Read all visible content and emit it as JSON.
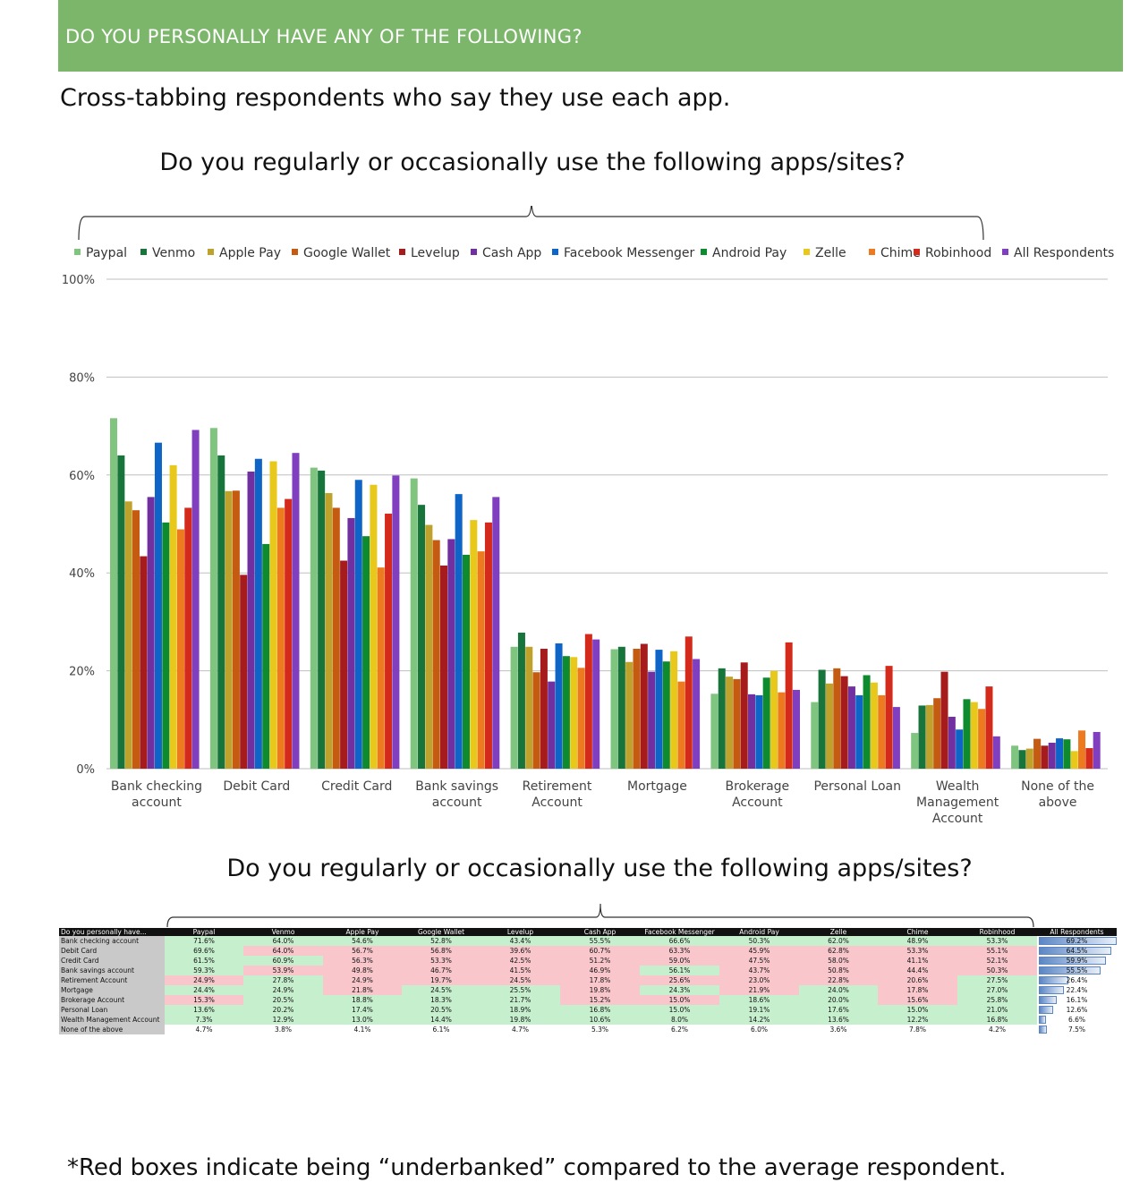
{
  "banner": {
    "text": "DO YOU PERSONALLY HAVE ANY OF THE FOLLOWING?"
  },
  "subtitle": "Cross-tabbing respondents who say they use each app.",
  "question": "Do you regularly or occasionally use the following apps/sites?",
  "footnote": "*Red boxes indicate being “underbanked” compared to the average respondent.",
  "colors": {
    "banner": "#7cb66b",
    "Paypal": "#7fc47f",
    "Venmo": "#17743a",
    "Apple Pay": "#bfa22b",
    "Google Wallet": "#c55a11",
    "Levelup": "#a61c1c",
    "Cash App": "#7030a0",
    "Facebook Messenger": "#0f64c8",
    "Android Pay": "#0f8b2f",
    "Zelle": "#e8c91b",
    "Chime": "#ee7a1f",
    "Robinhood": "#d42a1b",
    "All Respondents": "#7f3fbf",
    "red_cell": "#f9c6cc",
    "green_cell": "#c6efce"
  },
  "chart_data": {
    "type": "bar",
    "title": "Do you regularly or occasionally use the following apps/sites?",
    "categories": [
      "Bank checking account",
      "Debit Card",
      "Credit Card",
      "Bank savings account",
      "Retirement Account",
      "Mortgage",
      "Brokerage Account",
      "Personal Loan",
      "Wealth Management Account",
      "None of the above"
    ],
    "ylim": [
      0,
      100
    ],
    "yticks": [
      "0%",
      "20%",
      "40%",
      "60%",
      "80%",
      "100%"
    ],
    "legend_position": "top",
    "grid": true,
    "series": [
      {
        "name": "Paypal",
        "values": [
          71.6,
          69.6,
          61.5,
          59.3,
          24.9,
          24.4,
          15.3,
          13.6,
          7.3,
          4.7
        ]
      },
      {
        "name": "Venmo",
        "values": [
          64.0,
          64.0,
          60.9,
          53.9,
          27.8,
          24.9,
          20.5,
          20.2,
          12.9,
          3.8
        ]
      },
      {
        "name": "Apple Pay",
        "values": [
          54.6,
          56.7,
          56.3,
          49.8,
          24.9,
          21.8,
          18.8,
          17.4,
          13.0,
          4.1
        ]
      },
      {
        "name": "Google Wallet",
        "values": [
          52.8,
          56.8,
          53.3,
          46.7,
          19.7,
          24.5,
          18.3,
          20.5,
          14.4,
          6.1
        ]
      },
      {
        "name": "Levelup",
        "values": [
          43.4,
          39.6,
          42.5,
          41.5,
          24.5,
          25.5,
          21.7,
          18.9,
          19.8,
          4.7
        ]
      },
      {
        "name": "Cash App",
        "values": [
          55.5,
          60.7,
          51.2,
          46.9,
          17.8,
          19.8,
          15.2,
          16.8,
          10.6,
          5.3
        ]
      },
      {
        "name": "Facebook Messenger",
        "values": [
          66.6,
          63.3,
          59.0,
          56.1,
          25.6,
          24.3,
          15.0,
          15.0,
          8.0,
          6.2
        ]
      },
      {
        "name": "Android Pay",
        "values": [
          50.3,
          45.9,
          47.5,
          43.7,
          23.0,
          21.9,
          18.6,
          19.1,
          14.2,
          6.0
        ]
      },
      {
        "name": "Zelle",
        "values": [
          62.0,
          62.8,
          58.0,
          50.8,
          22.8,
          24.0,
          20.0,
          17.6,
          13.6,
          3.6
        ]
      },
      {
        "name": "Chime",
        "values": [
          48.9,
          53.3,
          41.1,
          44.4,
          20.6,
          17.8,
          15.6,
          15.0,
          12.2,
          7.8
        ]
      },
      {
        "name": "Robinhood",
        "values": [
          53.3,
          55.1,
          52.1,
          50.3,
          27.5,
          27.0,
          25.8,
          21.0,
          16.8,
          4.2
        ]
      },
      {
        "name": "All Respondents",
        "values": [
          69.2,
          64.5,
          59.9,
          55.5,
          26.4,
          22.4,
          16.1,
          12.6,
          6.6,
          7.5
        ]
      }
    ]
  },
  "table": {
    "corner": "Do you personally have...",
    "headers": [
      "Paypal",
      "Venmo",
      "Apple Pay",
      "Google Wallet",
      "Levelup",
      "Cash App",
      "Facebook Messenger",
      "Android Pay",
      "Zelle",
      "Chime",
      "Robinhood",
      "All Respondents"
    ],
    "rows": [
      {
        "label": "Bank checking account",
        "cells": [
          [
            "71.6%",
            "green"
          ],
          [
            "64.0%",
            "green"
          ],
          [
            "54.6%",
            "green"
          ],
          [
            "52.8%",
            "green"
          ],
          [
            "43.4%",
            "green"
          ],
          [
            "55.5%",
            "green"
          ],
          [
            "66.6%",
            "green"
          ],
          [
            "50.3%",
            "green"
          ],
          [
            "62.0%",
            "green"
          ],
          [
            "48.9%",
            "green"
          ],
          [
            "53.3%",
            "green"
          ]
        ],
        "all": "69.2%",
        "all_value": 69.2
      },
      {
        "label": "Debit Card",
        "cells": [
          [
            "69.6%",
            "green"
          ],
          [
            "64.0%",
            "red"
          ],
          [
            "56.7%",
            "red"
          ],
          [
            "56.8%",
            "red"
          ],
          [
            "39.6%",
            "red"
          ],
          [
            "60.7%",
            "red"
          ],
          [
            "63.3%",
            "red"
          ],
          [
            "45.9%",
            "red"
          ],
          [
            "62.8%",
            "red"
          ],
          [
            "53.3%",
            "red"
          ],
          [
            "55.1%",
            "red"
          ]
        ],
        "all": "64.5%",
        "all_value": 64.5
      },
      {
        "label": "Credit Card",
        "cells": [
          [
            "61.5%",
            "green"
          ],
          [
            "60.9%",
            "green"
          ],
          [
            "56.3%",
            "red"
          ],
          [
            "53.3%",
            "red"
          ],
          [
            "42.5%",
            "red"
          ],
          [
            "51.2%",
            "red"
          ],
          [
            "59.0%",
            "red"
          ],
          [
            "47.5%",
            "red"
          ],
          [
            "58.0%",
            "red"
          ],
          [
            "41.1%",
            "red"
          ],
          [
            "52.1%",
            "red"
          ]
        ],
        "all": "59.9%",
        "all_value": 59.9
      },
      {
        "label": "Bank savings account",
        "cells": [
          [
            "59.3%",
            "green"
          ],
          [
            "53.9%",
            "red"
          ],
          [
            "49.8%",
            "red"
          ],
          [
            "46.7%",
            "red"
          ],
          [
            "41.5%",
            "red"
          ],
          [
            "46.9%",
            "red"
          ],
          [
            "56.1%",
            "green"
          ],
          [
            "43.7%",
            "red"
          ],
          [
            "50.8%",
            "red"
          ],
          [
            "44.4%",
            "red"
          ],
          [
            "50.3%",
            "red"
          ]
        ],
        "all": "55.5%",
        "all_value": 55.5
      },
      {
        "label": "Retirement Account",
        "cells": [
          [
            "24.9%",
            "red"
          ],
          [
            "27.8%",
            "green"
          ],
          [
            "24.9%",
            "red"
          ],
          [
            "19.7%",
            "red"
          ],
          [
            "24.5%",
            "red"
          ],
          [
            "17.8%",
            "red"
          ],
          [
            "25.6%",
            "red"
          ],
          [
            "23.0%",
            "red"
          ],
          [
            "22.8%",
            "red"
          ],
          [
            "20.6%",
            "red"
          ],
          [
            "27.5%",
            "green"
          ]
        ],
        "all": "26.4%",
        "all_value": 26.4
      },
      {
        "label": "Mortgage",
        "cells": [
          [
            "24.4%",
            "green"
          ],
          [
            "24.9%",
            "green"
          ],
          [
            "21.8%",
            "red"
          ],
          [
            "24.5%",
            "green"
          ],
          [
            "25.5%",
            "green"
          ],
          [
            "19.8%",
            "red"
          ],
          [
            "24.3%",
            "green"
          ],
          [
            "21.9%",
            "red"
          ],
          [
            "24.0%",
            "green"
          ],
          [
            "17.8%",
            "red"
          ],
          [
            "27.0%",
            "green"
          ]
        ],
        "all": "22.4%",
        "all_value": 22.4
      },
      {
        "label": "Brokerage Account",
        "cells": [
          [
            "15.3%",
            "red"
          ],
          [
            "20.5%",
            "green"
          ],
          [
            "18.8%",
            "green"
          ],
          [
            "18.3%",
            "green"
          ],
          [
            "21.7%",
            "green"
          ],
          [
            "15.2%",
            "red"
          ],
          [
            "15.0%",
            "red"
          ],
          [
            "18.6%",
            "green"
          ],
          [
            "20.0%",
            "green"
          ],
          [
            "15.6%",
            "red"
          ],
          [
            "25.8%",
            "green"
          ]
        ],
        "all": "16.1%",
        "all_value": 16.1
      },
      {
        "label": "Personal Loan",
        "cells": [
          [
            "13.6%",
            "green"
          ],
          [
            "20.2%",
            "green"
          ],
          [
            "17.4%",
            "green"
          ],
          [
            "20.5%",
            "green"
          ],
          [
            "18.9%",
            "green"
          ],
          [
            "16.8%",
            "green"
          ],
          [
            "15.0%",
            "green"
          ],
          [
            "19.1%",
            "green"
          ],
          [
            "17.6%",
            "green"
          ],
          [
            "15.0%",
            "green"
          ],
          [
            "21.0%",
            "green"
          ]
        ],
        "all": "12.6%",
        "all_value": 12.6
      },
      {
        "label": "Wealth Management Account",
        "cells": [
          [
            "7.3%",
            "green"
          ],
          [
            "12.9%",
            "green"
          ],
          [
            "13.0%",
            "green"
          ],
          [
            "14.4%",
            "green"
          ],
          [
            "19.8%",
            "green"
          ],
          [
            "10.6%",
            "green"
          ],
          [
            "8.0%",
            "green"
          ],
          [
            "14.2%",
            "green"
          ],
          [
            "13.6%",
            "green"
          ],
          [
            "12.2%",
            "green"
          ],
          [
            "16.8%",
            "green"
          ]
        ],
        "all": "6.6%",
        "all_value": 6.6
      },
      {
        "label": "None of the above",
        "cells": [
          [
            "4.7%",
            "plain"
          ],
          [
            "3.8%",
            "plain"
          ],
          [
            "4.1%",
            "plain"
          ],
          [
            "6.1%",
            "plain"
          ],
          [
            "4.7%",
            "plain"
          ],
          [
            "5.3%",
            "plain"
          ],
          [
            "6.2%",
            "plain"
          ],
          [
            "6.0%",
            "plain"
          ],
          [
            "3.6%",
            "plain"
          ],
          [
            "7.8%",
            "plain"
          ],
          [
            "4.2%",
            "plain"
          ]
        ],
        "all": "7.5%",
        "all_value": 7.5
      }
    ]
  }
}
